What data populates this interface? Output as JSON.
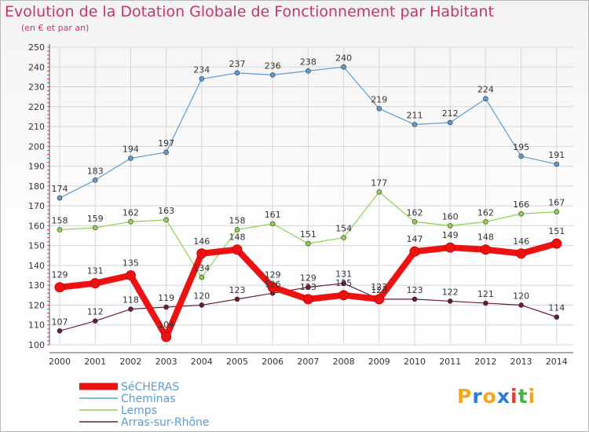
{
  "chart_data": {
    "type": "line",
    "title": "Evolution de la Dotation Globale de Fonctionnement par Habitant",
    "subtitle": "(en € et par an)",
    "x": [
      "2000",
      "2001",
      "2002",
      "2003",
      "2004",
      "2005",
      "2006",
      "2007",
      "2008",
      "2009",
      "2010",
      "2011",
      "2012",
      "2013",
      "2014"
    ],
    "ylim": [
      100,
      250
    ],
    "yticks": [
      100,
      110,
      120,
      130,
      140,
      150,
      160,
      170,
      180,
      190,
      200,
      210,
      220,
      230,
      240,
      250
    ],
    "grid": true,
    "legend_position": "bottom-left",
    "series": [
      {
        "name": "SéCHERAS",
        "color": "#ee1111",
        "values": [
          129,
          131,
          135,
          104,
          146,
          148,
          129,
          123,
          125,
          123,
          147,
          149,
          148,
          146,
          151
        ]
      },
      {
        "name": "Cheminas",
        "color": "#5b9bd5",
        "values": [
          174,
          183,
          194,
          197,
          234,
          237,
          236,
          238,
          240,
          219,
          211,
          212,
          224,
          195,
          191
        ]
      },
      {
        "name": "Lemps",
        "color": "#8fd14f",
        "values": [
          158,
          159,
          162,
          163,
          134,
          158,
          161,
          151,
          154,
          177,
          162,
          160,
          162,
          166,
          167
        ]
      },
      {
        "name": "Arras-sur-Rhône",
        "color": "#6b1e28",
        "values": [
          107,
          112,
          118,
          119,
          120,
          123,
          126,
          129,
          131,
          123,
          123,
          122,
          121,
          120,
          114
        ]
      }
    ]
  },
  "logo": {
    "text": "Proxiti",
    "letters": [
      "P",
      "r",
      "o",
      "x",
      "i",
      "t",
      "i"
    ],
    "colors": [
      "#f5a623",
      "#2b7bd8",
      "#f5a623",
      "#2b7bd8",
      "#e53935",
      "#4caf50",
      "#f5a623"
    ]
  }
}
